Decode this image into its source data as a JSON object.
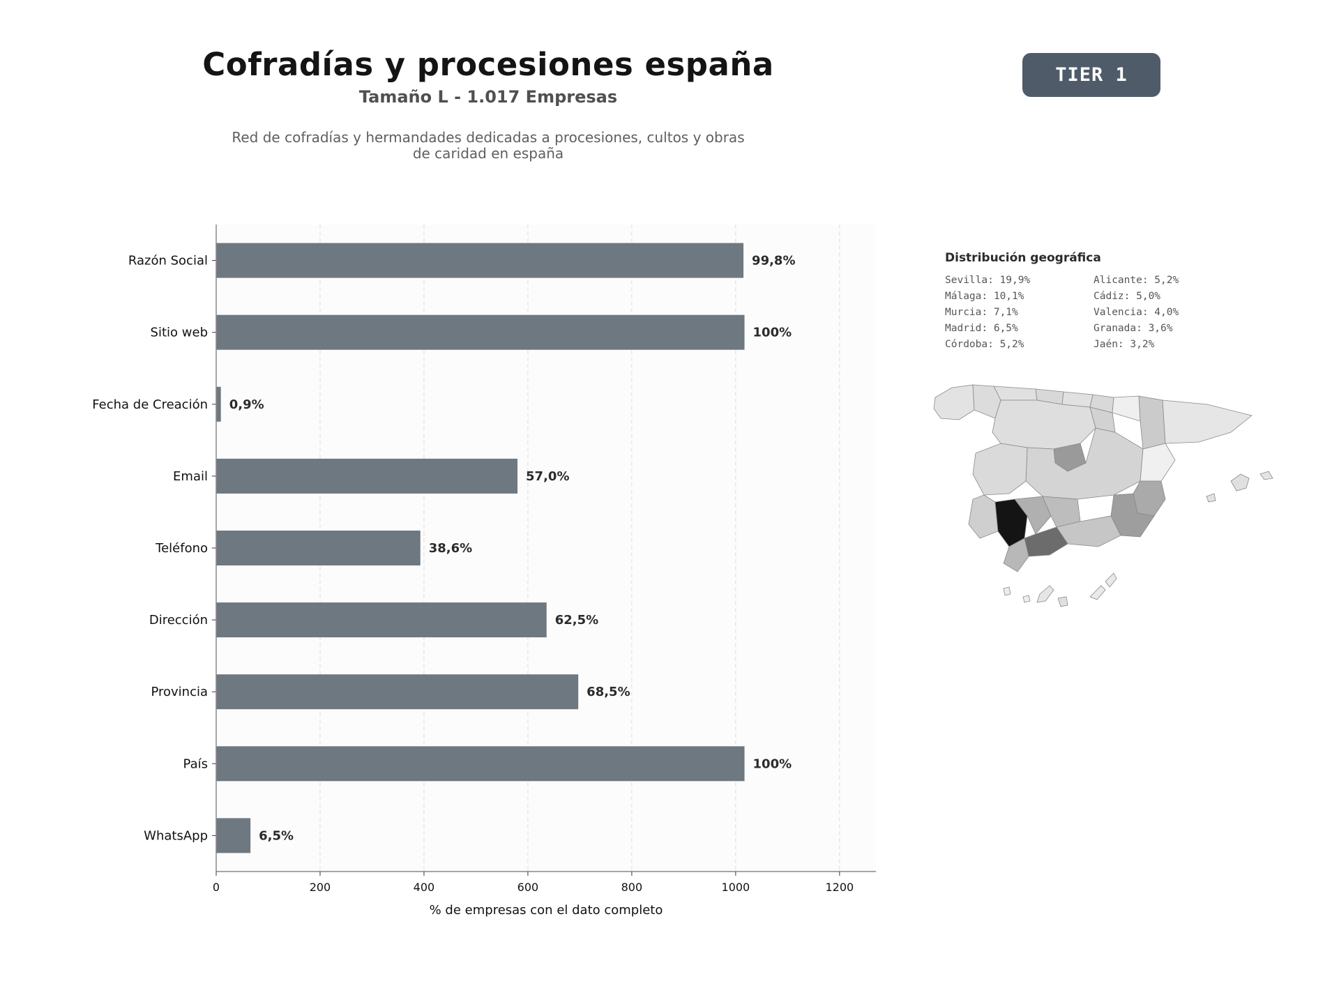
{
  "header": {
    "title": "Cofradías y procesiones españa",
    "subtitle": "Tamaño L - 1.017 Empresas",
    "description_line1": "Red de cofradías y hermandades dedicadas a procesiones, cultos y obras",
    "description_line2": "de caridad en españa",
    "tier_label": "TIER 1"
  },
  "chart_data": {
    "type": "bar",
    "orientation": "horizontal",
    "categories": [
      "Razón Social",
      "Sitio web",
      "Fecha de Creación",
      "Email",
      "Teléfono",
      "Dirección",
      "Provincia",
      "País",
      "WhatsApp"
    ],
    "values": [
      1015,
      1017,
      9,
      580,
      393,
      636,
      697,
      1017,
      66
    ],
    "value_labels": [
      "99,8%",
      "100%",
      "0,9%",
      "57,0%",
      "38,6%",
      "62,5%",
      "68,5%",
      "100%",
      "6,5%"
    ],
    "xlabel": "% de empresas con el dato completo",
    "ylabel": "",
    "xlim": [
      0,
      1270
    ],
    "xticks": [
      0,
      200,
      400,
      600,
      800,
      1000,
      1200
    ],
    "grid": "vertical dashed",
    "bar_color": "#6e7881"
  },
  "geo": {
    "title": "Distribución geográfica",
    "column_left": [
      "Sevilla: 19,9%",
      "Málaga: 10,1%",
      "Murcia: 7,1%",
      "Madrid: 6,5%",
      "Córdoba: 5,2%"
    ],
    "column_right": [
      "Alicante: 5,2%",
      "Cádiz: 5,0%",
      "Valencia: 4,0%",
      "Granada: 3,6%",
      "Jaén: 3,2%"
    ]
  }
}
